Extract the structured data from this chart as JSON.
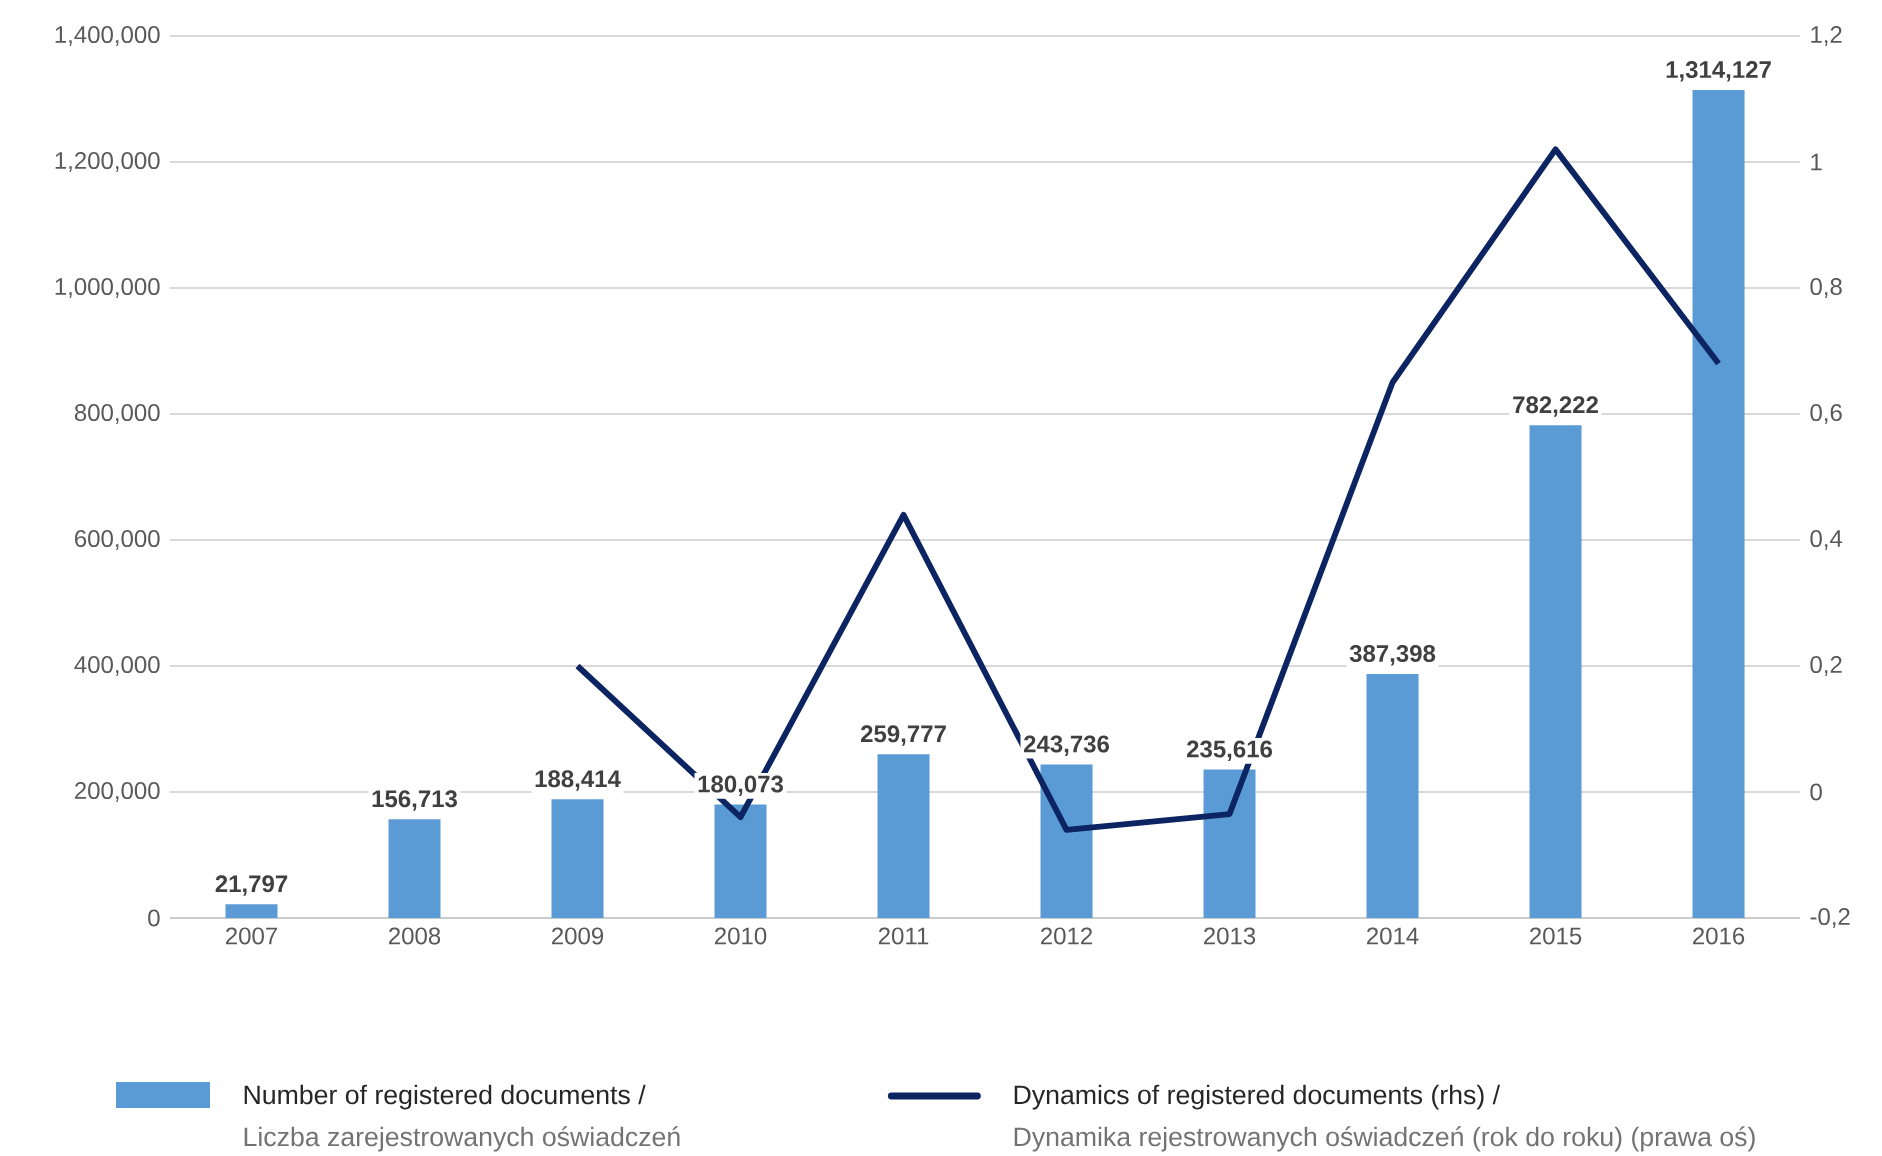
{
  "chart_data": {
    "type": "bar",
    "categories": [
      "2007",
      "2008",
      "2009",
      "2010",
      "2011",
      "2012",
      "2013",
      "2014",
      "2015",
      "2016"
    ],
    "series": [
      {
        "name": "Number of registered documents /",
        "color": "#5b9bd5",
        "values": [
          21797,
          156713,
          188414,
          180073,
          259777,
          243736,
          235616,
          387398,
          782222,
          1314127
        ],
        "value_labels": [
          "21,797",
          "156,713",
          "188,414",
          "180,073",
          "259,777",
          "243,736",
          "235,616",
          "387,398",
          "782,222",
          "1,314,127"
        ]
      },
      {
        "name": "Dynamics of registered documents (rhs) /",
        "type": "line",
        "axis": "y2",
        "color": "#0c2461",
        "values": [
          null,
          null,
          0.2,
          -0.04,
          0.44,
          -0.06,
          -0.035,
          0.65,
          1.02,
          0.68
        ]
      }
    ],
    "annotations": [
      "Liczba zarejestrowanych oświadczeń",
      "Dynamika rejestrowanych oświadczeń (rok do roku) (prawa oś)"
    ],
    "ylim": [
      0,
      1400000
    ],
    "yticks": [
      {
        "value": 0,
        "label": "0"
      },
      {
        "value": 200000,
        "label": "200,000"
      },
      {
        "value": 400000,
        "label": "400,000"
      },
      {
        "value": 600000,
        "label": "600,000"
      },
      {
        "value": 800000,
        "label": "800,000"
      },
      {
        "value": 1000000,
        "label": "1,000,000"
      },
      {
        "value": 1200000,
        "label": "1,200,000"
      },
      {
        "value": 1400000,
        "label": "1,400,000"
      }
    ],
    "y2lim": [
      -0.2,
      1.2
    ],
    "y2ticks": [
      {
        "value": -0.2,
        "label": "-0,2"
      },
      {
        "value": 0,
        "label": "0"
      },
      {
        "value": 0.2,
        "label": "0,2"
      },
      {
        "value": 0.4,
        "label": "0,4"
      },
      {
        "value": 0.6,
        "label": "0,6"
      },
      {
        "value": 0.8,
        "label": "0,8"
      },
      {
        "value": 1,
        "label": "1"
      },
      {
        "value": 1.2,
        "label": "1,2"
      }
    ],
    "grid": "y",
    "legend": "bottom",
    "marker": "none",
    "line_style": "solid"
  }
}
